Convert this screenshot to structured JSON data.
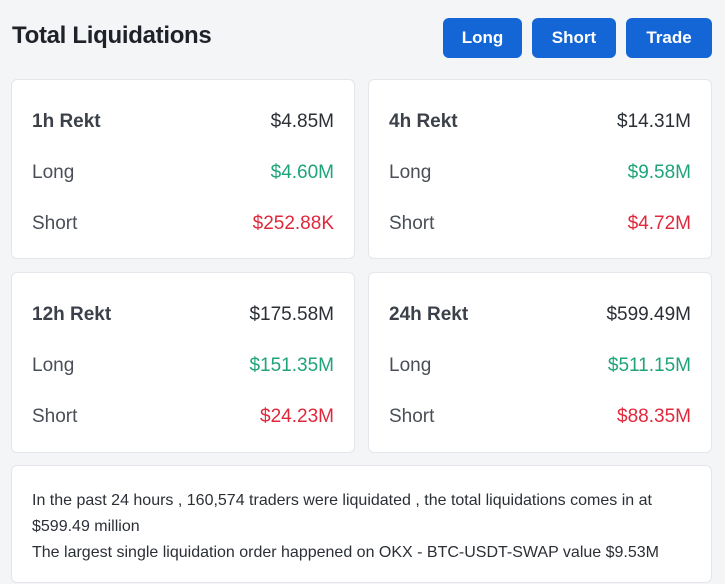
{
  "header": {
    "title": "Total Liquidations",
    "buttons": {
      "long": "Long",
      "short": "Short",
      "trade": "Trade"
    }
  },
  "cards": [
    {
      "label": "1h Rekt",
      "total": "$4.85M",
      "long_label": "Long",
      "long": "$4.60M",
      "short_label": "Short",
      "short": "$252.88K"
    },
    {
      "label": "4h Rekt",
      "total": "$14.31M",
      "long_label": "Long",
      "long": "$9.58M",
      "short_label": "Short",
      "short": "$4.72M"
    },
    {
      "label": "12h Rekt",
      "total": "$175.58M",
      "long_label": "Long",
      "long": "$151.35M",
      "short_label": "Short",
      "short": "$24.23M"
    },
    {
      "label": "24h Rekt",
      "total": "$599.49M",
      "long_label": "Long",
      "long": "$511.15M",
      "short_label": "Short",
      "short": "$88.35M"
    }
  ],
  "summary": {
    "line1": "In the past 24 hours , 160,574 traders were liquidated , the total liquidations comes in at $599.49 million",
    "line2": "The largest single liquidation order happened on OKX - BTC-USDT-SWAP value $9.53M"
  },
  "colors": {
    "accent": "#1466d6",
    "long": "#1fa37a",
    "short": "#e0283c"
  }
}
